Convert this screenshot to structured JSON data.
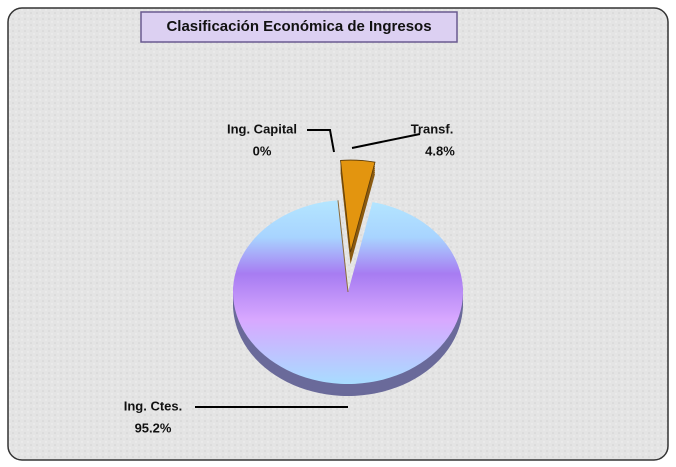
{
  "chart_data": {
    "type": "pie",
    "title": "Clasificación Económica de Ingresos",
    "categories": [
      "Transf.",
      "Ing. Ctes.",
      "Ing. Capital"
    ],
    "values": [
      4.8,
      95.2,
      0
    ],
    "value_labels": [
      "4.8%",
      "95.2%",
      "0%"
    ],
    "colors": [
      "#e3950f",
      "#a77cf2",
      "#8a6a3a"
    ],
    "legend": false
  }
}
